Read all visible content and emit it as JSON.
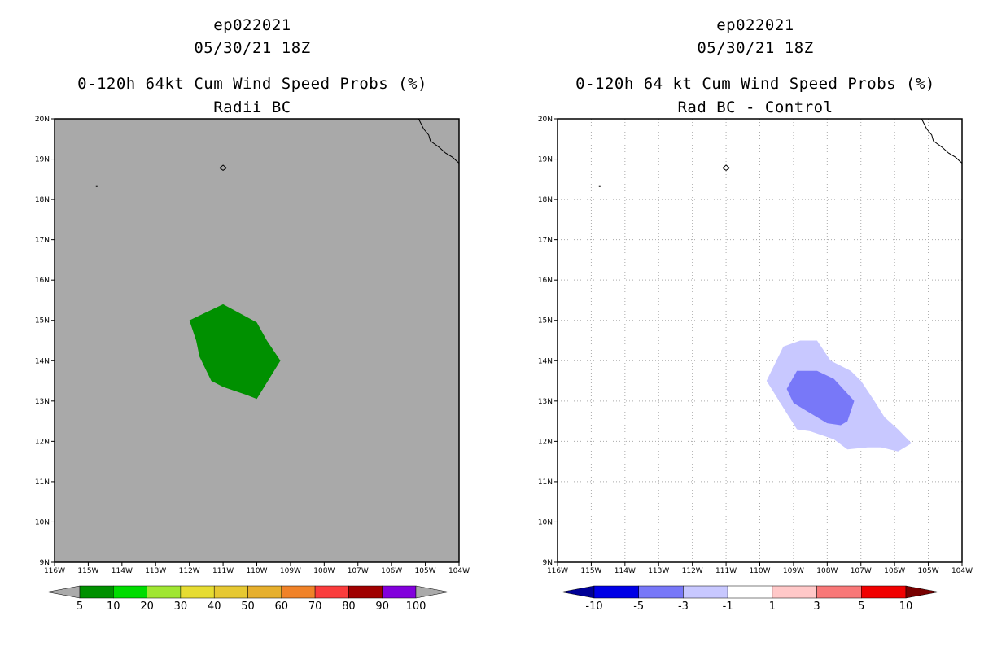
{
  "left_panel": {
    "title_line1": "ep022021",
    "title_line2": "05/30/21 18Z",
    "title_line3": "0-120h 64kt Cum Wind Speed Probs (%)",
    "title_line4": "Radii BC"
  },
  "right_panel": {
    "title_line1": "ep022021",
    "title_line2": "05/30/21 18Z",
    "title_line3": "0-120h 64 kt Cum Wind Speed Probs (%)",
    "title_line4": "Rad BC - Control"
  },
  "chart_data": [
    {
      "type": "heatmap",
      "title": "0-120h 64kt Cum Wind Speed Probs (%) — Radii BC",
      "xlim": [
        -116,
        -104
      ],
      "ylim": [
        9,
        20
      ],
      "x_tick_labels": [
        "116W",
        "115W",
        "114W",
        "113W",
        "112W",
        "111W",
        "110W",
        "109W",
        "108W",
        "107W",
        "106W",
        "105W",
        "104W"
      ],
      "y_tick_labels": [
        "9N",
        "10N",
        "11N",
        "12N",
        "13N",
        "14N",
        "15N",
        "16N",
        "17N",
        "18N",
        "19N",
        "20N"
      ],
      "grid": false,
      "background_color": "#a9a9a9",
      "contours": [
        {
          "level": "5-10",
          "color": "#009000",
          "polygon": [
            [
              -112.0,
              15.0
            ],
            [
              -111.0,
              15.4
            ],
            [
              -110.0,
              14.95
            ],
            [
              -109.7,
              14.5
            ],
            [
              -109.3,
              14.0
            ],
            [
              -110.0,
              13.05
            ],
            [
              -110.3,
              13.15
            ],
            [
              -111.0,
              13.35
            ],
            [
              -111.35,
              13.5
            ],
            [
              -111.7,
              14.1
            ],
            [
              -111.8,
              14.5
            ],
            [
              -112.0,
              15.0
            ]
          ]
        }
      ],
      "colorbar": {
        "labels": [
          "5",
          "10",
          "20",
          "30",
          "40",
          "50",
          "60",
          "70",
          "80",
          "90",
          "100"
        ],
        "colors": [
          "#009000",
          "#00dc00",
          "#a0e632",
          "#e6dc32",
          "#e6c832",
          "#e6af2d",
          "#f08228",
          "#fa3c3c",
          "#a00000",
          "#8200dc"
        ],
        "under_color": "#aaaaaa",
        "over_color": "#aaaaaa"
      }
    },
    {
      "type": "heatmap",
      "title": "0-120h 64 kt Cum Wind Speed Probs (%) — Rad BC - Control",
      "xlim": [
        -116,
        -104
      ],
      "ylim": [
        9,
        20
      ],
      "x_tick_labels": [
        "116W",
        "115W",
        "114W",
        "113W",
        "112W",
        "111W",
        "110W",
        "109W",
        "108W",
        "107W",
        "106W",
        "105W",
        "104W"
      ],
      "y_tick_labels": [
        "9N",
        "10N",
        "11N",
        "12N",
        "13N",
        "14N",
        "15N",
        "16N",
        "17N",
        "18N",
        "19N",
        "20N"
      ],
      "grid": true,
      "background_color": "#ffffff",
      "contours": [
        {
          "level": "-3 to -1",
          "color": "#c8c8ff",
          "polygon": [
            [
              -109.8,
              13.5
            ],
            [
              -109.3,
              14.35
            ],
            [
              -108.8,
              14.5
            ],
            [
              -108.3,
              14.5
            ],
            [
              -107.9,
              14.0
            ],
            [
              -107.3,
              13.75
            ],
            [
              -107.0,
              13.5
            ],
            [
              -106.6,
              13.0
            ],
            [
              -106.3,
              12.6
            ],
            [
              -105.9,
              12.3
            ],
            [
              -105.5,
              11.95
            ],
            [
              -105.9,
              11.75
            ],
            [
              -106.4,
              11.85
            ],
            [
              -106.8,
              11.85
            ],
            [
              -107.4,
              11.8
            ],
            [
              -107.8,
              12.05
            ],
            [
              -108.5,
              12.25
            ],
            [
              -108.9,
              12.3
            ],
            [
              -109.2,
              12.7
            ],
            [
              -109.5,
              13.1
            ],
            [
              -109.8,
              13.5
            ]
          ]
        },
        {
          "level": "-5 to -3",
          "color": "#7878f8",
          "polygon": [
            [
              -109.2,
              13.3
            ],
            [
              -108.9,
              13.75
            ],
            [
              -108.3,
              13.75
            ],
            [
              -107.8,
              13.55
            ],
            [
              -107.2,
              13.0
            ],
            [
              -107.4,
              12.5
            ],
            [
              -107.6,
              12.4
            ],
            [
              -108.0,
              12.45
            ],
            [
              -108.5,
              12.7
            ],
            [
              -109.0,
              12.95
            ],
            [
              -109.2,
              13.3
            ]
          ]
        }
      ],
      "colorbar": {
        "labels": [
          "-10",
          "-5",
          "-3",
          "-1",
          "1",
          "3",
          "5",
          "10"
        ],
        "colors": [
          "#0000e6",
          "#7878f8",
          "#c8c8ff",
          "#ffffff",
          "#ffc8c8",
          "#f87878",
          "#f00000"
        ],
        "under_color": "#000096",
        "over_color": "#780000"
      }
    }
  ]
}
